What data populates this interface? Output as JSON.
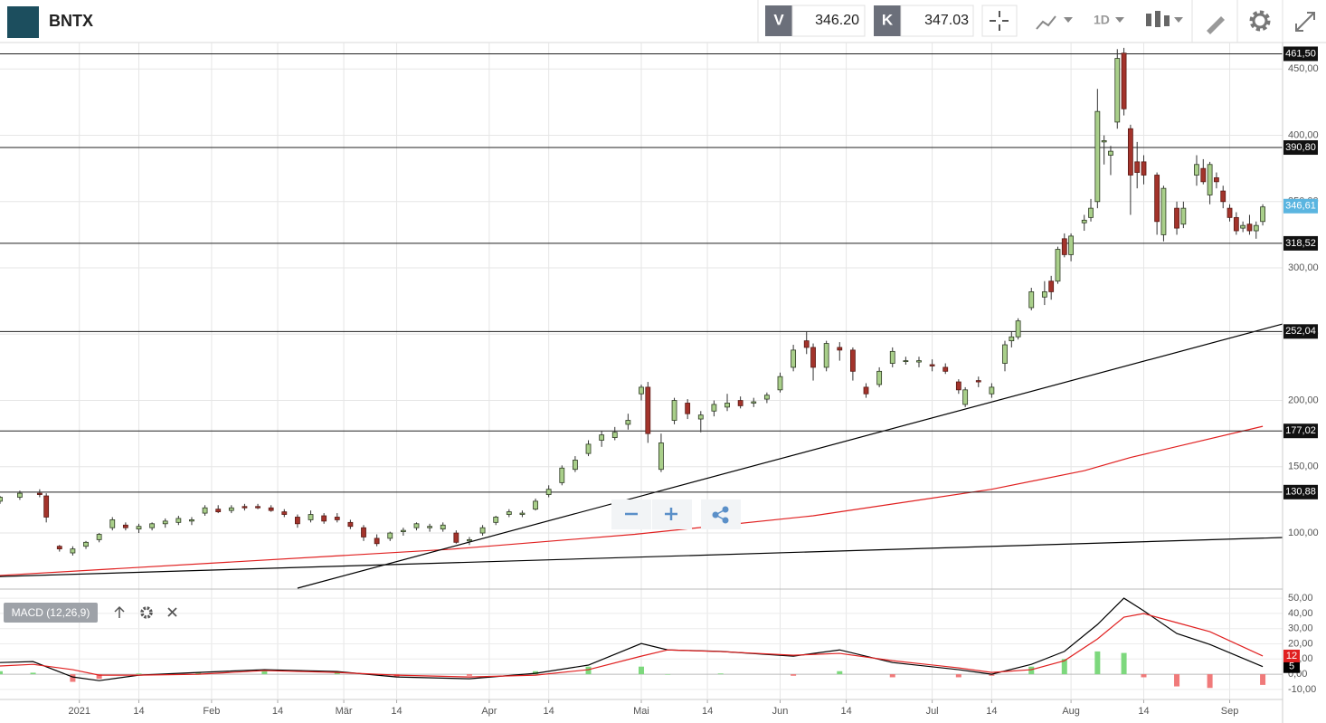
{
  "header": {
    "title": "BNTX",
    "bid_label": "V",
    "bid": "346.20",
    "ask_label": "K",
    "ask": "347.03",
    "interval": "1D"
  },
  "chart_data": {
    "type": "candlestick",
    "xlim": [
      0,
      194
    ],
    "xticks": [
      {
        "value": 12,
        "label": "2021"
      },
      {
        "value": 21,
        "label": "14"
      },
      {
        "value": 32,
        "label": "Feb"
      },
      {
        "value": 42,
        "label": "14"
      },
      {
        "value": 52,
        "label": "Mär"
      },
      {
        "value": 60,
        "label": "14"
      },
      {
        "value": 74,
        "label": "Apr"
      },
      {
        "value": 83,
        "label": "14"
      },
      {
        "value": 97,
        "label": "Mai"
      },
      {
        "value": 107,
        "label": "14"
      },
      {
        "value": 118,
        "label": "Jun"
      },
      {
        "value": 128,
        "label": "14"
      },
      {
        "value": 141,
        "label": "Jul"
      },
      {
        "value": 150,
        "label": "14"
      },
      {
        "value": 162,
        "label": "Aug"
      },
      {
        "value": 173,
        "label": "14"
      },
      {
        "value": 186,
        "label": "Sep"
      }
    ],
    "ylim": [
      58.4,
      470
    ],
    "yticks": [
      {
        "value": 100,
        "label": "100,00"
      },
      {
        "value": 150,
        "label": "150,00"
      },
      {
        "value": 200,
        "label": "200,00"
      },
      {
        "value": 250,
        "label": "250,00"
      },
      {
        "value": 300,
        "label": "300,00"
      },
      {
        "value": 350,
        "label": "350,00"
      },
      {
        "value": 400,
        "label": "400,00"
      },
      {
        "value": 450,
        "label": "450,00"
      }
    ],
    "grid": true,
    "up_color": "#a9cf8a",
    "down_color": "#a3332b",
    "candles": {
      "x": [
        0,
        3,
        6,
        7,
        9,
        11,
        13,
        15,
        17,
        19,
        21,
        23,
        25,
        27,
        29,
        31,
        33,
        35,
        37,
        39,
        41,
        43,
        45,
        47,
        49,
        51,
        53,
        55,
        57,
        59,
        61,
        63,
        65,
        67,
        69,
        71,
        73,
        75,
        77,
        79,
        81,
        83,
        85,
        87,
        89,
        91,
        93,
        95,
        97,
        98,
        100,
        102,
        104,
        106,
        108,
        110,
        112,
        114,
        116,
        118,
        120,
        122,
        123,
        125,
        127,
        129,
        131,
        133,
        135,
        137,
        139,
        141,
        143,
        145,
        146,
        148,
        150,
        152,
        153,
        154,
        156,
        158,
        159,
        160,
        161,
        162,
        164,
        165,
        166,
        167,
        168,
        169,
        170,
        171,
        172,
        173,
        175,
        176,
        178,
        179,
        181,
        182,
        183,
        184,
        185,
        186,
        187,
        188,
        189,
        190,
        191
      ],
      "open": [
        124,
        127,
        130,
        128,
        90,
        85,
        90,
        95,
        104,
        106,
        103,
        104,
        107,
        108,
        109,
        115,
        118,
        117,
        120,
        120,
        119,
        116,
        112,
        110,
        113,
        112,
        108,
        104,
        96,
        96,
        101,
        104,
        104,
        103,
        100,
        94,
        100,
        108,
        114,
        114,
        118,
        129,
        138,
        148,
        160,
        170,
        172,
        182,
        205,
        210,
        148,
        185,
        198,
        186,
        192,
        195,
        200,
        198,
        201,
        208,
        225,
        245,
        240,
        225,
        240,
        238,
        210,
        212,
        228,
        230,
        229,
        227,
        225,
        214,
        197,
        215,
        205,
        228,
        245,
        248,
        270,
        278,
        290,
        290,
        322,
        310,
        334,
        338,
        350,
        395,
        385,
        410,
        462,
        405,
        380,
        380,
        370,
        325,
        345,
        333,
        370,
        375,
        355,
        368,
        358,
        345,
        338,
        330,
        333,
        328,
        335
      ],
      "high": [
        128,
        132,
        133,
        130,
        91,
        90,
        94,
        100,
        112,
        108,
        107,
        108,
        111,
        113,
        112,
        121,
        121,
        121,
        122,
        122,
        121,
        118,
        114,
        117,
        115,
        115,
        110,
        106,
        99,
        101,
        104,
        108,
        107,
        108,
        102,
        97,
        106,
        113,
        118,
        117,
        126,
        136,
        151,
        158,
        170,
        177,
        180,
        190,
        212,
        214,
        175,
        202,
        201,
        192,
        200,
        205,
        203,
        202,
        206,
        221,
        242,
        252,
        243,
        245,
        244,
        240,
        213,
        225,
        240,
        233,
        233,
        231,
        228,
        216,
        210,
        218,
        213,
        245,
        252,
        262,
        285,
        290,
        294,
        316,
        326,
        326,
        340,
        352,
        435,
        400,
        392,
        465,
        466,
        408,
        395,
        385,
        372,
        362,
        350,
        350,
        385,
        382,
        380,
        372,
        362,
        348,
        342,
        335,
        340,
        335,
        348
      ],
      "low": [
        122,
        125,
        127,
        108,
        86,
        83,
        88,
        93,
        102,
        102,
        100,
        102,
        104,
        106,
        106,
        113,
        115,
        115,
        117,
        118,
        116,
        112,
        104,
        108,
        107,
        108,
        103,
        94,
        90,
        94,
        98,
        102,
        101,
        101,
        92,
        91,
        98,
        106,
        112,
        112,
        117,
        127,
        136,
        146,
        158,
        165,
        170,
        178,
        200,
        168,
        146,
        182,
        186,
        176,
        188,
        192,
        194,
        195,
        198,
        206,
        222,
        235,
        215,
        222,
        230,
        215,
        202,
        210,
        225,
        227,
        225,
        222,
        220,
        205,
        195,
        210,
        202,
        222,
        240,
        246,
        268,
        272,
        276,
        288,
        308,
        305,
        328,
        335,
        345,
        378,
        370,
        405,
        415,
        340,
        360,
        363,
        325,
        320,
        325,
        330,
        362,
        363,
        348,
        360,
        345,
        335,
        325,
        327,
        325,
        322,
        332
      ],
      "close": [
        127,
        130,
        129,
        112,
        88,
        88,
        93,
        99,
        110,
        104,
        105,
        107,
        109,
        111,
        110,
        119,
        116,
        119,
        119,
        119,
        117,
        114,
        107,
        114,
        109,
        110,
        105,
        97,
        92,
        100,
        102,
        107,
        105,
        106,
        93,
        95,
        104,
        112,
        116,
        115,
        124,
        133,
        149,
        155,
        167,
        174,
        176,
        185,
        210,
        175,
        168,
        200,
        190,
        189,
        197,
        198,
        196,
        199,
        204,
        218,
        238,
        240,
        225,
        243,
        238,
        222,
        205,
        222,
        237,
        230,
        230,
        226,
        222,
        208,
        208,
        214,
        210,
        242,
        248,
        260,
        282,
        282,
        282,
        314,
        310,
        324,
        336,
        345,
        418,
        396,
        388,
        458,
        420,
        370,
        372,
        370,
        335,
        360,
        330,
        345,
        378,
        365,
        378,
        365,
        350,
        338,
        328,
        332,
        328,
        332,
        346
      ]
    },
    "levels": [
      {
        "value": 461.5,
        "label": "461,50"
      },
      {
        "value": 390.8,
        "label": "390,80"
      },
      {
        "value": 318.52,
        "label": "318,52"
      },
      {
        "value": 252.04,
        "label": "252,04"
      },
      {
        "value": 177.02,
        "label": "177,02"
      },
      {
        "value": 130.88,
        "label": "130,88"
      }
    ],
    "last_price": {
      "value": 346.61,
      "label": "346,61",
      "color": "#5bb5e0"
    },
    "overlays": [
      {
        "color": "#e02020",
        "x": [
          0,
          68,
          96,
          123,
          150,
          164,
          171,
          191
        ],
        "values": [
          68,
          87.7,
          99,
          113,
          133,
          147,
          157,
          180.5
        ]
      },
      {
        "color": "#000000",
        "x": [
          45,
          194
        ],
        "values": [
          58.4,
          257.7
        ]
      },
      {
        "color": "#000000",
        "x": [
          0,
          194
        ],
        "values": [
          67.2,
          96.6
        ]
      }
    ],
    "indicator": {
      "label": "MACD (12,26,9)",
      "ylim": [
        -16,
        55.4
      ],
      "yticks": [
        {
          "value": 50,
          "label": "50,00"
        },
        {
          "value": 40,
          "label": "40,00"
        },
        {
          "value": 30,
          "label": "30,00"
        },
        {
          "value": 20,
          "label": "20,00"
        },
        {
          "value": 10,
          "label": "10,00"
        },
        {
          "value": 0,
          "label": "0,00"
        },
        {
          "value": -10,
          "label": "-10,00"
        }
      ],
      "x": [
        0,
        5,
        11,
        15,
        21,
        30,
        40,
        51,
        60,
        71,
        81,
        89,
        97,
        101,
        109,
        120,
        127,
        135,
        145,
        150,
        156,
        161,
        166,
        170,
        173,
        178,
        183,
        191
      ],
      "series": [
        {
          "color": "#000000",
          "values": [
            7.7,
            8.3,
            -1.8,
            -4.2,
            -0.6,
            1.2,
            3,
            1.8,
            -1.8,
            -3,
            0.6,
            6,
            20.2,
            16,
            15,
            11.9,
            16,
            7.7,
            3,
            0,
            6.5,
            15,
            32.7,
            50,
            41.7,
            26.8,
            19.6,
            5
          ]
        },
        {
          "color": "#e02020",
          "values": [
            5.4,
            6.5,
            3,
            -0.6,
            -0.6,
            0,
            2.4,
            1.2,
            -0.6,
            -1.8,
            -0.6,
            3,
            11.9,
            16,
            14.9,
            12.5,
            13.7,
            8.9,
            4.2,
            1.2,
            3,
            8.9,
            23.2,
            37.5,
            39.9,
            33.9,
            28,
            12
          ]
        }
      ],
      "histogram": {
        "up_color": "#7dd87d",
        "down_color": "#f07a7a",
        "values": [
          2,
          1,
          -5,
          -3,
          0.5,
          1,
          2,
          1,
          -2,
          -1,
          2,
          5,
          5,
          0,
          0.5,
          -1,
          2,
          -2,
          -2,
          -1,
          5,
          10,
          15,
          14,
          -2,
          -8,
          -9,
          -7
        ]
      }
    }
  }
}
